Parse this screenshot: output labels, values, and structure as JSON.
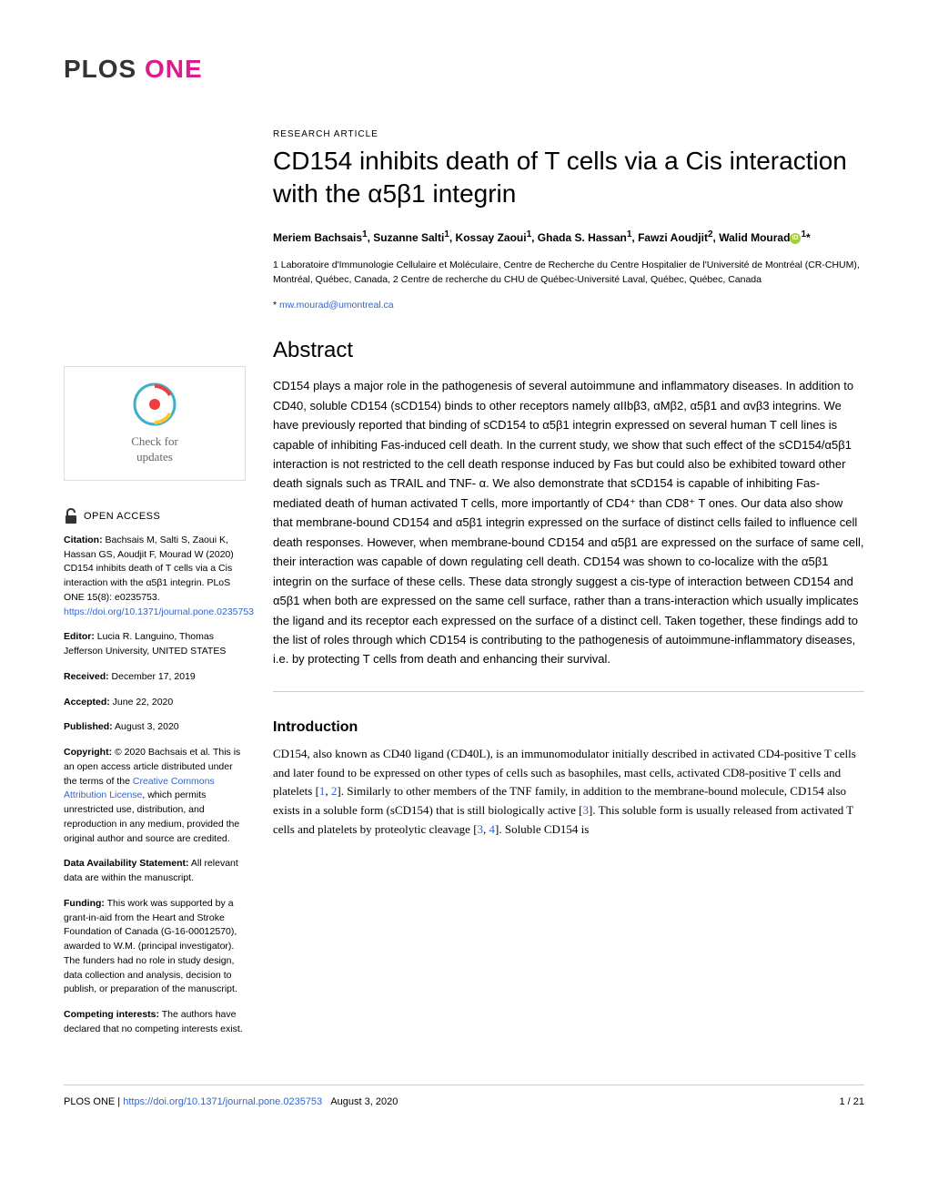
{
  "journal": {
    "plos": "PLOS",
    "one": "ONE"
  },
  "article": {
    "type": "RESEARCH ARTICLE",
    "title": "CD154 inhibits death of T cells via a Cis interaction with the α5β1 integrin",
    "authors_html": "Meriem Bachsais<sup>1</sup>, Suzanne Salti<sup>1</sup>, Kossay Zaoui<sup>1</sup>, Ghada S. Hassan<sup>1</sup>, Fawzi Aoudjit<sup>2</sup>, Walid Mourad",
    "last_author_sup": "1",
    "corresponding_marker": "*",
    "affiliations": "1 Laboratoire d'Immunologie Cellulaire et Moléculaire, Centre de Recherche du Centre Hospitalier de l'Université de Montréal (CR-CHUM), Montréal, Québec, Canada, 2 Centre de recherche du CHU de Québec-Université Laval, Québec, Québec, Canada",
    "email_prefix": "* ",
    "email": "mw.mourad@umontreal.ca"
  },
  "abstract": {
    "heading": "Abstract",
    "text": "CD154 plays a major role in the pathogenesis of several autoimmune and inflammatory diseases. In addition to CD40, soluble CD154 (sCD154) binds to other receptors namely αIIbβ3, αMβ2, α5β1 and αvβ3 integrins. We have previously reported that binding of sCD154 to α5β1 integrin expressed on several human T cell lines is capable of inhibiting Fas-induced cell death. In the current study, we show that such effect of the sCD154/α5β1 interaction is not restricted to the cell death response induced by Fas but could also be exhibited toward other death signals such as TRAIL and TNF- α. We also demonstrate that sCD154 is capable of inhibiting Fas-mediated death of human activated T cells, more importantly of CD4⁺ than CD8⁺ T ones. Our data also show that membrane-bound CD154 and α5β1 integrin expressed on the surface of distinct cells failed to influence cell death responses. However, when membrane-bound CD154 and α5β1 are expressed on the surface of same cell, their interaction was capable of down regulating cell death. CD154 was shown to co-localize with the α5β1 integrin on the surface of these cells. These data strongly suggest a cis-type of interaction between CD154 and α5β1 when both are expressed on the same cell surface, rather than a trans-interaction which usually implicates the ligand and its receptor each expressed on the surface of a distinct cell. Taken together, these findings add to the list of roles through which CD154 is contributing to the pathogenesis of autoimmune-inflammatory diseases, i.e. by protecting T cells from death and enhancing their survival."
  },
  "introduction": {
    "heading": "Introduction",
    "text_parts": [
      "CD154, also known as CD40 ligand (CD40L), is an immunomodulator initially described in activated CD4-positive T cells and later found to be expressed on other types of cells such as basophiles, mast cells, activated CD8-positive T cells and platelets [",
      "1",
      ", ",
      "2",
      "]. Similarly to other members of the TNF family, in addition to the membrane-bound molecule, CD154 also exists in a soluble form (sCD154) that is still biologically active [",
      "3",
      "]. This soluble form is usually released from activated T cells and platelets by proteolytic cleavage [",
      "3",
      ", ",
      "4",
      "]. Soluble CD154 is"
    ]
  },
  "sidebar": {
    "check_updates": {
      "line1": "Check for",
      "line2": "updates"
    },
    "open_access": "OPEN ACCESS",
    "citation": {
      "label": "Citation:",
      "text": " Bachsais M, Salti S, Zaoui K, Hassan GS, Aoudjit F, Mourad W (2020) CD154 inhibits death of T cells via a Cis interaction with the α5β1 integrin. PLoS ONE 15(8): e0235753. ",
      "link": "https://doi.org/10.1371/journal.pone.0235753"
    },
    "editor": {
      "label": "Editor:",
      "text": " Lucia R. Languino, Thomas Jefferson University, UNITED STATES"
    },
    "received": {
      "label": "Received:",
      "text": " December 17, 2019"
    },
    "accepted": {
      "label": "Accepted:",
      "text": " June 22, 2020"
    },
    "published": {
      "label": "Published:",
      "text": " August 3, 2020"
    },
    "copyright": {
      "label": "Copyright:",
      "text1": " © 2020 Bachsais et al. This is an open access article distributed under the terms of the ",
      "link": "Creative Commons Attribution License",
      "text2": ", which permits unrestricted use, distribution, and reproduction in any medium, provided the original author and source are credited."
    },
    "data_availability": {
      "label": "Data Availability Statement:",
      "text": " All relevant data are within the manuscript."
    },
    "funding": {
      "label": "Funding:",
      "text": " This work was supported by a grant-in-aid from the Heart and Stroke Foundation of Canada (G-16-00012570), awarded to W.M. (principal investigator). The funders had no role in study design, data collection and analysis, decision to publish, or preparation of the manuscript."
    },
    "competing": {
      "label": "Competing interests:",
      "text": " The authors have declared that no competing interests exist."
    }
  },
  "footer": {
    "journal": "PLOS ONE | ",
    "doi": "https://doi.org/10.1371/journal.pone.0235753",
    "date": "August 3, 2020",
    "page": "1 / 21"
  },
  "colors": {
    "pink": "#d91e8b",
    "link": "#3366cc",
    "orcid": "#a6ce39",
    "crossmark_red": "#ef3e42",
    "crossmark_blue": "#3eb1c8",
    "crossmark_yellow": "#ffc72c"
  }
}
